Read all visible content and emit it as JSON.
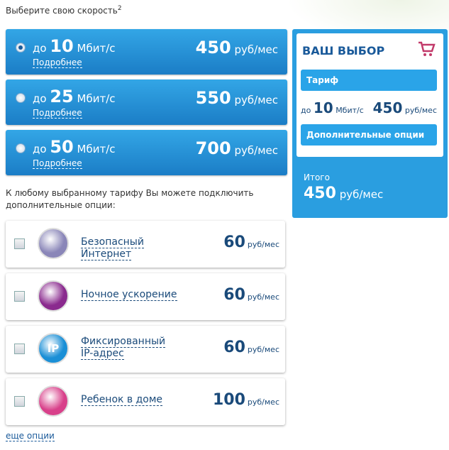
{
  "header": {
    "text": "Выберите свою скорость",
    "sup": "2"
  },
  "tariffs": [
    {
      "prefix": "до",
      "speed": 10,
      "unit": "Мбит/с",
      "price": 450,
      "price_unit": "руб/мес",
      "details": "Подробнее",
      "selected": true
    },
    {
      "prefix": "до",
      "speed": 25,
      "unit": "Мбит/с",
      "price": 550,
      "price_unit": "руб/мес",
      "details": "Подробнее",
      "selected": false
    },
    {
      "prefix": "до",
      "speed": 50,
      "unit": "Мбит/с",
      "price": 700,
      "price_unit": "руб/мес",
      "details": "Подробнее",
      "selected": false
    }
  ],
  "options_note": "К любому выбранному тарифу Вы можете подключить дополнительные опции:",
  "options": [
    {
      "name": "Безопасный Интернет",
      "price": 60,
      "price_unit": "руб/мес",
      "icon_color": "#8a86b8"
    },
    {
      "name": "Ночное ускорение",
      "price": 60,
      "price_unit": "руб/мес",
      "icon_color": "#8a2a8e"
    },
    {
      "name": "Фиксированный IP-адрес",
      "price": 60,
      "price_unit": "руб/мес",
      "icon_color": "#1a8fd6",
      "icon_label": "IP"
    },
    {
      "name": "Ребенок в доме",
      "price": 100,
      "price_unit": "руб/мес",
      "icon_color": "#d8408a"
    }
  ],
  "more": "еще опции",
  "summary": {
    "title": "ВАШ ВЫБОР",
    "tariff_heading": "Тариф",
    "prefix": "до",
    "speed": 10,
    "unit": "Мбит/с",
    "price": 450,
    "price_unit": "руб/мес",
    "options_heading": "Дополнительные опции",
    "total_label": "Итого",
    "total": 450,
    "total_unit": "руб/мес"
  }
}
